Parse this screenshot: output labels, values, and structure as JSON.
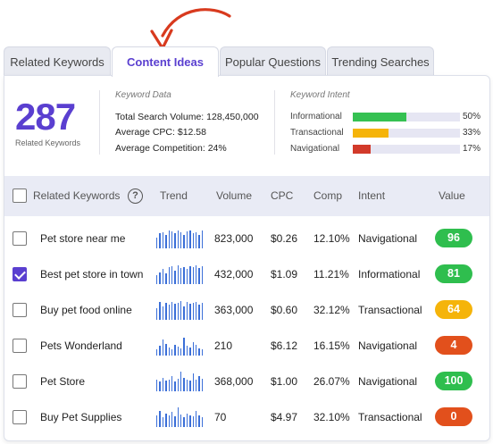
{
  "tabs": [
    {
      "label": "Related Keywords",
      "active": false
    },
    {
      "label": "Content Ideas",
      "active": true
    },
    {
      "label": "Popular Questions",
      "active": false
    },
    {
      "label": "Trending Searches",
      "active": false
    }
  ],
  "summary": {
    "count": "287",
    "count_label": "Related Keywords"
  },
  "keyword_data": {
    "title": "Keyword Data",
    "lines": [
      {
        "label": "Total Search Volume:",
        "value": "128,450,000"
      },
      {
        "label": "Average CPC:",
        "value": "$12.58"
      },
      {
        "label": "Average Competition:",
        "value": "24%"
      }
    ]
  },
  "keyword_intent": {
    "title": "Keyword Intent",
    "rows": [
      {
        "name": "Informational",
        "pct": "50%",
        "fraction": 0.5,
        "color": "#35c152"
      },
      {
        "name": "Transactional",
        "pct": "33%",
        "fraction": 0.33,
        "color": "#f5b40a"
      },
      {
        "name": "Navigational",
        "pct": "17%",
        "fraction": 0.17,
        "color": "#d23a2a"
      }
    ]
  },
  "table": {
    "headers": {
      "keyword": "Related Keywords",
      "trend": "Trend",
      "volume": "Volume",
      "cpc": "CPC",
      "comp": "Comp",
      "intent": "Intent",
      "value": "Value"
    },
    "help_icon": "question-circle-icon",
    "rows": [
      {
        "keyword": "Pet store near me",
        "checked": false,
        "volume": "823,000",
        "cpc": "$0.26",
        "comp": "12.10%",
        "intent": "Navigational",
        "value": "96",
        "value_color": "#2fbe4e",
        "trend": [
          0.55,
          0.75,
          0.8,
          0.7,
          0.9,
          0.85,
          0.75,
          0.9,
          0.8,
          0.7,
          0.85,
          0.9,
          0.75,
          0.8,
          0.7,
          0.9
        ]
      },
      {
        "keyword": "Best pet store in town",
        "checked": true,
        "volume": "432,000",
        "cpc": "$1.09",
        "comp": "11.21%",
        "intent": "Informational",
        "value": "81",
        "value_color": "#2fbe4e",
        "trend": [
          0.45,
          0.6,
          0.75,
          0.55,
          0.85,
          0.9,
          0.7,
          0.95,
          0.8,
          0.85,
          0.75,
          0.9,
          0.85,
          0.95,
          0.8,
          0.9
        ]
      },
      {
        "keyword": "Buy pet food online",
        "checked": false,
        "volume": "363,000",
        "cpc": "$0.60",
        "comp": "32.12%",
        "intent": "Transactional",
        "value": "64",
        "value_color": "#f5b40a",
        "trend": [
          0.6,
          0.9,
          0.7,
          0.85,
          0.75,
          0.9,
          0.8,
          0.85,
          0.95,
          0.7,
          0.9,
          0.8,
          0.85,
          0.9,
          0.75,
          0.85
        ]
      },
      {
        "keyword": "Pets Wonderland",
        "checked": false,
        "volume": "210",
        "cpc": "$6.12",
        "comp": "16.15%",
        "intent": "Navigational",
        "value": "4",
        "value_color": "#e2501c",
        "trend": [
          0.3,
          0.5,
          0.8,
          0.6,
          0.4,
          0.3,
          0.55,
          0.45,
          0.35,
          0.9,
          0.5,
          0.4,
          0.7,
          0.55,
          0.35,
          0.3
        ]
      },
      {
        "keyword": "Pet Store",
        "checked": false,
        "volume": "368,000",
        "cpc": "$1.00",
        "comp": "26.07%",
        "intent": "Navigational",
        "value": "100",
        "value_color": "#2fbe4e",
        "trend": [
          0.6,
          0.5,
          0.7,
          0.55,
          0.6,
          0.75,
          0.5,
          0.65,
          1.0,
          0.7,
          0.6,
          0.55,
          0.9,
          0.6,
          0.75,
          0.65
        ]
      },
      {
        "keyword": "Buy Pet Supplies",
        "checked": false,
        "volume": "70",
        "cpc": "$4.97",
        "comp": "32.10%",
        "intent": "Transactional",
        "value": "0",
        "value_color": "#e2501c",
        "trend": [
          0.6,
          0.8,
          0.5,
          0.7,
          0.6,
          0.75,
          0.55,
          1.0,
          0.65,
          0.5,
          0.7,
          0.6,
          0.55,
          0.8,
          0.6,
          0.5
        ]
      }
    ]
  },
  "colors": {
    "accent": "#5a3fd0",
    "arrow": "#d83a1e",
    "trend_bar": "#3b6fd8"
  }
}
